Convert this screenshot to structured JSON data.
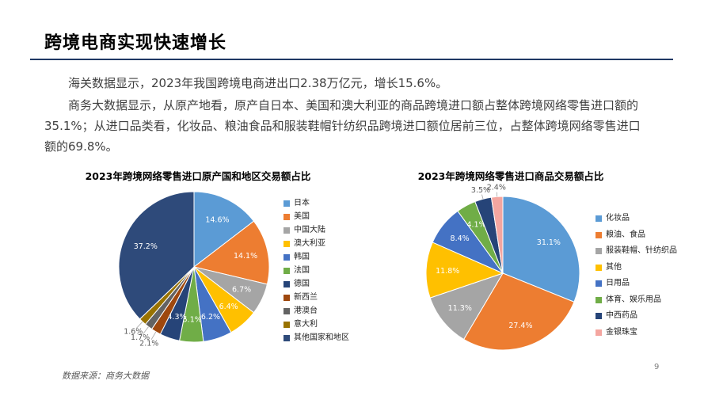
{
  "slide": {
    "title": "跨境电商实现快速增长",
    "paragraph1": "海关数据显示，2023年我国跨境电商进出口2.38万亿元，增长15.6%。",
    "paragraph2": "商务大数据显示，从原产地看，原产自日本、美国和澳大利亚的商品跨境进口额占整体跨境网络零售进口额的35.1%；从进口品类看，化妆品、粮油食品和服装鞋帽针纺织品跨境进口额位居前三位，占整体跨境网络零售进口额的69.8%。",
    "source": "数据来源：商务大数据",
    "page_number": "9"
  },
  "chart_data": [
    {
      "type": "pie",
      "title": "2023年跨境网络零售进口原产国和地区交易额占比",
      "legend_position": "right",
      "categories": [
        "日本",
        "美国",
        "中国大陆",
        "澳大利亚",
        "韩国",
        "法国",
        "德国",
        "新西兰",
        "港澳台",
        "意大利",
        "其他国家和地区"
      ],
      "values": [
        14.6,
        14.1,
        6.7,
        6.4,
        6.2,
        5.1,
        4.3,
        2.1,
        1.7,
        1.6,
        37.2
      ],
      "labels": [
        "14.6%",
        "14.1%",
        "6.7%",
        "6.4%",
        "6.2%",
        "5.1%",
        "4.3%",
        "2.1%",
        "1.7%",
        "1.6%",
        "37.2%"
      ],
      "colors": [
        "#5b9bd5",
        "#ed7d31",
        "#a5a5a5",
        "#ffc000",
        "#4472c4",
        "#70ad47",
        "#264478",
        "#9e480e",
        "#636363",
        "#997300",
        "#2e4a7a"
      ]
    },
    {
      "type": "pie",
      "title": "2023年跨境网络零售进口商品交易额占比",
      "legend_position": "right",
      "categories": [
        "化妆品",
        "粮油、食品",
        "服装鞋帽、针纺织品",
        "其他",
        "日用品",
        "体育、娱乐用品",
        "中西药品",
        "金银珠宝"
      ],
      "values": [
        31.1,
        27.4,
        11.3,
        11.8,
        8.4,
        4.1,
        3.5,
        2.4
      ],
      "labels": [
        "31.1%",
        "27.4%",
        "11.3%",
        "11.8%",
        "8.4%",
        "4.1%",
        "3.5%",
        "2.4%"
      ],
      "colors": [
        "#5b9bd5",
        "#ed7d31",
        "#a5a5a5",
        "#ffc000",
        "#4472c4",
        "#70ad47",
        "#264478",
        "#f4a6a0"
      ]
    }
  ]
}
